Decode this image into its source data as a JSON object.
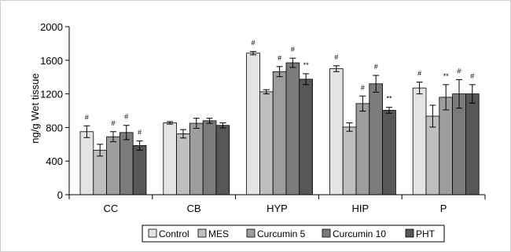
{
  "chart_data": {
    "type": "bar",
    "ylabel": "ng/g Wet tissue",
    "ylim": [
      0,
      2000
    ],
    "yticks": [
      0,
      400,
      800,
      1200,
      1600,
      2000
    ],
    "categories": [
      "CC",
      "CB",
      "HYP",
      "HIP",
      "P"
    ],
    "series": [
      {
        "name": "Control",
        "color": "#e4e4e4",
        "values": [
          750,
          855,
          1685,
          1500,
          1270
        ],
        "errors": [
          70,
          15,
          20,
          35,
          70
        ],
        "marks": [
          "#",
          "",
          "#",
          "#",
          "#"
        ]
      },
      {
        "name": "MES",
        "color": "#bfbfbf",
        "values": [
          530,
          725,
          1225,
          805,
          935
        ],
        "errors": [
          70,
          50,
          25,
          50,
          130
        ],
        "marks": [
          "",
          "",
          "",
          "",
          ""
        ]
      },
      {
        "name": "Curcumin 5",
        "color": "#9d9d9d",
        "values": [
          690,
          850,
          1465,
          1085,
          1160
        ],
        "errors": [
          60,
          60,
          60,
          90,
          150
        ],
        "marks": [
          "#",
          "",
          "#",
          "#",
          "**"
        ]
      },
      {
        "name": "Curcumin 10",
        "color": "#7b7b7b",
        "values": [
          740,
          880,
          1570,
          1320,
          1200
        ],
        "errors": [
          85,
          30,
          55,
          100,
          170
        ],
        "marks": [
          "#",
          "",
          "#",
          "#",
          "#"
        ]
      },
      {
        "name": "PHT",
        "color": "#575757",
        "values": [
          585,
          825,
          1375,
          1005,
          1200
        ],
        "errors": [
          55,
          30,
          65,
          35,
          110
        ],
        "marks": [
          "#",
          "",
          "**",
          "**",
          "#"
        ]
      }
    ],
    "legend_position": "bottom"
  }
}
